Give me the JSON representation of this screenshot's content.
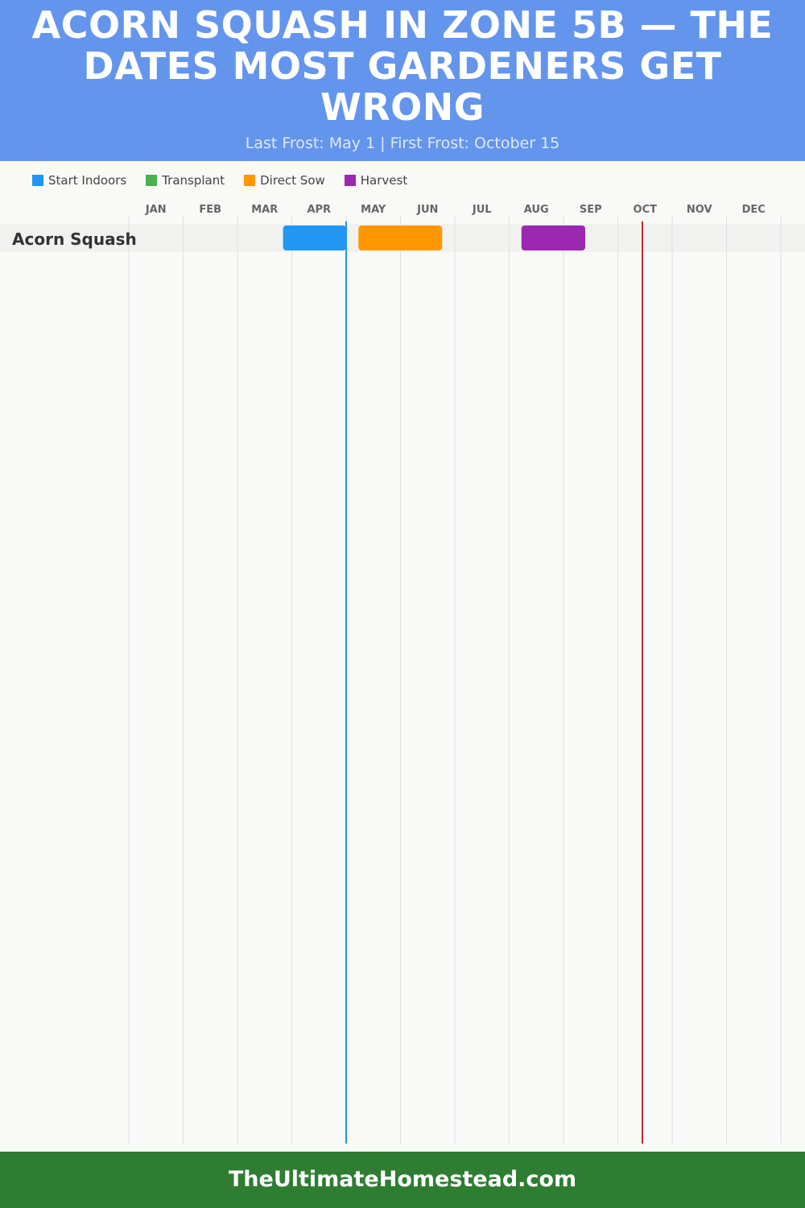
{
  "title": "ACORN SQUASH IN ZONE 5B — THE DATES MOST GARDENERS GET WRONG",
  "subtitle": "Last Frost: May 1 | First Frost: October 15",
  "footer": "TheUltimateHomestead.com",
  "chart_data": {
    "type": "gantt",
    "months": [
      "JAN",
      "FEB",
      "MAR",
      "APR",
      "MAY",
      "JUN",
      "JUL",
      "AUG",
      "SEP",
      "OCT",
      "NOV",
      "DEC"
    ],
    "legend": [
      {
        "label": "Start Indoors",
        "color": "#2196f3"
      },
      {
        "label": "Transplant",
        "color": "#4caf50"
      },
      {
        "label": "Direct Sow",
        "color": "#ff9800"
      },
      {
        "label": "Harvest",
        "color": "#9c27b0"
      }
    ],
    "rows": [
      {
        "crop": "Acorn Squash",
        "bars": [
          {
            "phase": "Start Indoors",
            "start": "Mar 27",
            "end": "May 1",
            "color": "#2196f3"
          },
          {
            "phase": "Direct Sow",
            "start": "May 8",
            "end": "Jun 24",
            "color": "#ff9800"
          },
          {
            "phase": "Harvest",
            "start": "Aug 8",
            "end": "Sep 13",
            "color": "#9c27b0"
          }
        ]
      }
    ],
    "markers": [
      {
        "label": "Last Frost",
        "date": "May 1",
        "color": "#2196f3"
      },
      {
        "label": "First Frost",
        "date": "Oct 15",
        "color": "#c62828"
      }
    ]
  }
}
